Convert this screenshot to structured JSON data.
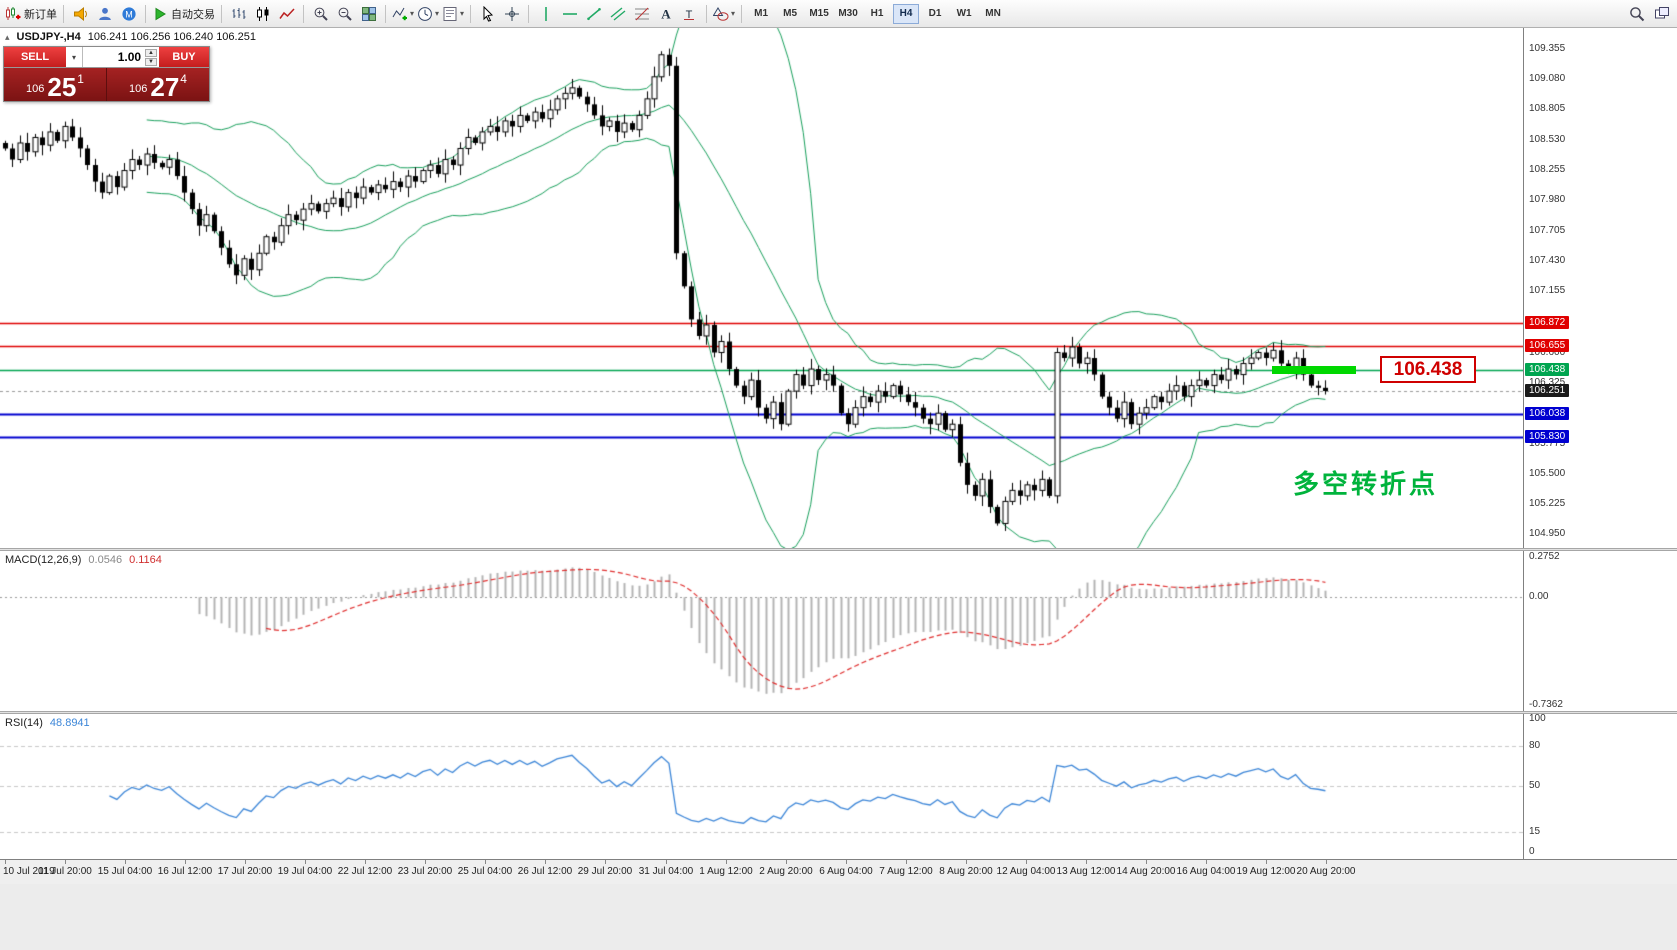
{
  "toolbar": {
    "new_order_label": "新订单",
    "autotrade_label": "自动交易",
    "groups": [
      {
        "kind": "new-order",
        "icon": "new-order-icon"
      },
      {
        "kind": "icons",
        "items": [
          "horn-icon",
          "expert-advisor-icon",
          "community-icon"
        ]
      },
      {
        "kind": "autotrade",
        "icon": "autotrade-play-icon"
      },
      {
        "kind": "icons",
        "items": [
          "bar-chart-icon",
          "candlestick-icon",
          "line-chart-icon"
        ]
      },
      {
        "kind": "icons",
        "items": [
          "zoom-in-icon",
          "zoom-out-icon",
          "tile-windows-icon"
        ]
      },
      {
        "kind": "icons-dd",
        "items": [
          "indicators-icon",
          "timeframes-icon",
          "templates-icon"
        ]
      },
      {
        "kind": "icons",
        "items": [
          "cursor-icon",
          "crosshair-icon"
        ]
      },
      {
        "kind": "icons",
        "items": [
          "vertical-line-icon",
          "horizontal-line-icon",
          "trendline-icon",
          "channel-icon",
          "fibonacci-icon",
          "text-icon",
          "text-label-icon"
        ]
      },
      {
        "kind": "icons-dd",
        "items": [
          "shapes-icon"
        ]
      },
      {
        "kind": "timeframes"
      }
    ],
    "timeframes": [
      "M1",
      "M5",
      "M15",
      "M30",
      "H1",
      "H4",
      "D1",
      "W1",
      "MN"
    ],
    "active_timeframe": "H4",
    "right_icons": [
      "search-icon",
      "chart-windows-icon"
    ]
  },
  "chart_header": {
    "expander_icon": "▴",
    "symbol": "USDJPY-,H4",
    "ohlc": "106.241 106.256 106.240 106.251"
  },
  "trade_panel": {
    "sell_label": "SELL",
    "buy_label": "BUY",
    "volume": "1.00",
    "sell_price": {
      "prefix": "106",
      "big": "25",
      "sup": "1"
    },
    "buy_price": {
      "prefix": "106",
      "big": "27",
      "sup": "4"
    }
  },
  "annotation": "多空转折点",
  "annotation_color": "#00b33c",
  "price_tag": "106.438",
  "price_tag_color": "#cf0000",
  "chart_data": {
    "type": "candlestick",
    "symbol": "USDJPY",
    "period": "H4",
    "price_range": [
      104.9,
      109.47
    ],
    "y_axis_ticks": [
      "109.355",
      "109.080",
      "108.805",
      "108.530",
      "108.255",
      "107.980",
      "107.705",
      "107.430",
      "107.155",
      "106.600",
      "106.325",
      "105.775",
      "105.500",
      "105.225",
      "104.950"
    ],
    "hlines": [
      {
        "price": 106.872,
        "label": "106.872",
        "color": "#e00000",
        "width": 1.5
      },
      {
        "price": 106.655,
        "label": "106.655",
        "color": "#e00000",
        "width": 1.5
      },
      {
        "price": 106.438,
        "label": "106.438",
        "color": "#00a550",
        "width": 1.5,
        "highlight_segment": true,
        "highlight_color": "#00d800"
      },
      {
        "price": 106.038,
        "label": "106.038",
        "color": "#0000d0",
        "width": 2
      },
      {
        "price": 105.83,
        "label": "105.830",
        "color": "#0000d0",
        "width": 2
      }
    ],
    "current_price": {
      "value": 106.251,
      "label": "106.251",
      "badge_color": "#1a1a1a"
    },
    "bollinger": {
      "period": 20,
      "deviation": 2,
      "color": "#18a05c"
    },
    "first_open": 108.5,
    "closes": [
      108.45,
      108.35,
      108.5,
      108.42,
      108.55,
      108.48,
      108.6,
      108.52,
      108.65,
      108.55,
      108.45,
      108.3,
      108.15,
      108.05,
      108.2,
      108.1,
      108.25,
      108.35,
      108.3,
      108.4,
      108.32,
      108.28,
      108.35,
      108.2,
      108.05,
      107.9,
      107.75,
      107.85,
      107.7,
      107.55,
      107.4,
      107.3,
      107.45,
      107.35,
      107.5,
      107.65,
      107.6,
      107.75,
      107.85,
      107.8,
      107.9,
      107.95,
      107.88,
      107.95,
      108.0,
      107.92,
      108.05,
      108.0,
      108.1,
      108.05,
      108.12,
      108.08,
      108.15,
      108.1,
      108.2,
      108.15,
      108.25,
      108.3,
      108.22,
      108.35,
      108.3,
      108.45,
      108.55,
      108.5,
      108.6,
      108.65,
      108.6,
      108.7,
      108.65,
      108.75,
      108.7,
      108.78,
      108.72,
      108.8,
      108.9,
      108.95,
      109.0,
      108.92,
      108.85,
      108.75,
      108.65,
      108.7,
      108.6,
      108.68,
      108.62,
      108.75,
      108.9,
      109.1,
      109.3,
      109.2,
      107.5,
      107.2,
      106.9,
      106.75,
      106.85,
      106.6,
      106.7,
      106.45,
      106.3,
      106.2,
      106.35,
      106.1,
      106.0,
      106.15,
      105.95,
      106.25,
      106.4,
      106.3,
      106.45,
      106.35,
      106.4,
      106.3,
      106.05,
      105.95,
      106.1,
      106.2,
      106.15,
      106.25,
      106.2,
      106.3,
      106.22,
      106.15,
      106.1,
      106.0,
      105.95,
      106.05,
      105.9,
      105.95,
      105.6,
      105.4,
      105.3,
      105.45,
      105.2,
      105.05,
      105.25,
      105.35,
      105.3,
      105.4,
      105.35,
      105.45,
      105.3,
      106.6,
      106.55,
      106.65,
      106.5,
      106.55,
      106.4,
      106.2,
      106.1,
      106.0,
      106.15,
      105.95,
      106.05,
      106.1,
      106.2,
      106.15,
      106.25,
      106.3,
      106.2,
      106.3,
      106.35,
      106.3,
      106.4,
      106.35,
      106.45,
      106.4,
      106.5,
      106.55,
      106.6,
      106.55,
      106.62,
      106.5,
      106.45,
      106.55,
      106.4,
      106.3,
      106.28,
      106.251
    ],
    "macd": {
      "name": "MACD(12,26,9)",
      "v1": "0.0546",
      "v2": "0.1164",
      "fast": 12,
      "slow": 26,
      "signal": 9,
      "y_ticks": [
        "0.2752",
        "0.00",
        "-0.7362"
      ],
      "range": [
        -0.7362,
        0.2752
      ],
      "hist_color": "#b4b4b4",
      "signal_color": "#e03030"
    },
    "rsi": {
      "name": "RSI(14)",
      "value": "48.8941",
      "period": 14,
      "y_ticks": [
        "100",
        "80",
        "50",
        "15",
        "0"
      ],
      "levels": [
        80,
        50,
        15
      ],
      "line_color": "#3c86d8"
    },
    "time_labels": [
      "10 Jul 2019",
      "11 Jul 20:00",
      "15 Jul 04:00",
      "16 Jul 12:00",
      "17 Jul 20:00",
      "19 Jul 04:00",
      "22 Jul 12:00",
      "23 Jul 20:00",
      "25 Jul 04:00",
      "26 Jul 12:00",
      "29 Jul 20:00",
      "31 Jul 04:00",
      "1 Aug 12:00",
      "2 Aug 20:00",
      "6 Aug 04:00",
      "7 Aug 12:00",
      "8 Aug 20:00",
      "12 Aug 04:00",
      "13 Aug 12:00",
      "14 Aug 20:00",
      "16 Aug 04:00",
      "19 Aug 12:00",
      "20 Aug 20:00"
    ]
  }
}
